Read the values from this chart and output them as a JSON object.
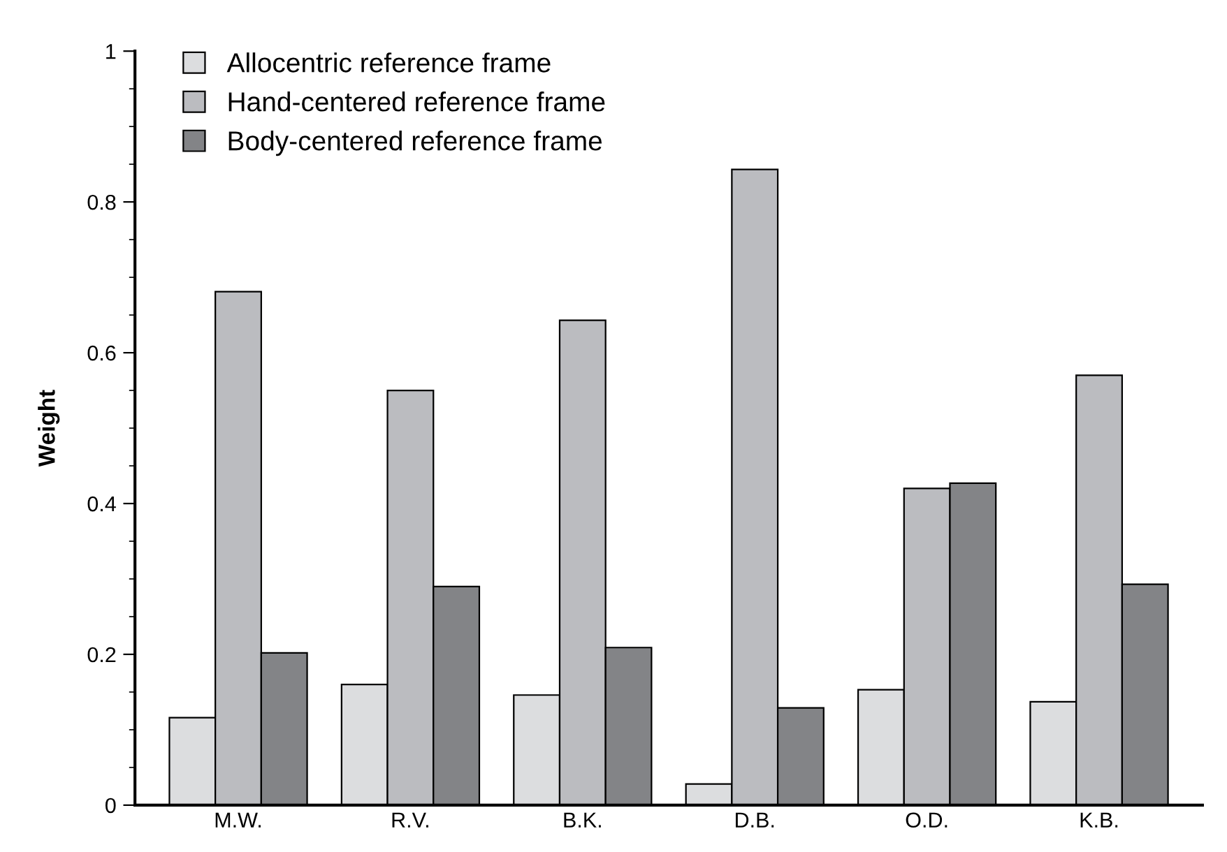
{
  "chart_data": {
    "type": "bar",
    "ylabel": "Weight",
    "categories": [
      "M.W.",
      "R.V.",
      "B.K.",
      "D.B.",
      "O.D.",
      "K.B."
    ],
    "series": [
      {
        "name": "Allocentric reference frame",
        "color": "#dcdddf",
        "values": [
          0.116,
          0.16,
          0.146,
          0.028,
          0.153,
          0.137
        ]
      },
      {
        "name": "Hand-centered reference frame",
        "color": "#bbbcc0",
        "values": [
          0.681,
          0.55,
          0.643,
          0.843,
          0.42,
          0.57
        ]
      },
      {
        "name": "Body-centered reference frame",
        "color": "#838487",
        "values": [
          0.202,
          0.29,
          0.209,
          0.129,
          0.427,
          0.293
        ]
      }
    ],
    "ylim": [
      0,
      1
    ],
    "yticks": [
      0,
      0.2,
      0.4,
      0.6,
      0.8,
      1
    ],
    "grid": false,
    "legend": "top left"
  }
}
